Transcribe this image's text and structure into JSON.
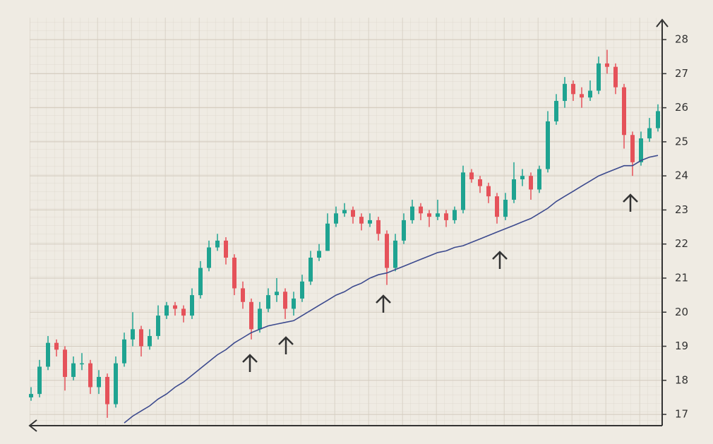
{
  "chart_data": {
    "type": "candlestick",
    "up_color": "#1fa391",
    "down_color": "#e5525a",
    "open": [
      17.5,
      17.6,
      18.4,
      19.1,
      18.9,
      18.1,
      18.5,
      18.5,
      17.8,
      18.1,
      17.3,
      18.5,
      19.2,
      19.5,
      19.0,
      19.3,
      19.9,
      20.2,
      20.1,
      19.9,
      20.5,
      21.3,
      21.9,
      22.1,
      21.6,
      20.7,
      20.3,
      19.5,
      20.1,
      20.5,
      20.6,
      20.1,
      20.4,
      20.9,
      21.6,
      21.8,
      22.6,
      22.9,
      23.0,
      22.8,
      22.6,
      22.7,
      22.3,
      21.3,
      22.1,
      22.7,
      23.1,
      22.9,
      22.8,
      22.9,
      22.7,
      23.0,
      24.1,
      23.9,
      23.7,
      23.4,
      22.8,
      23.3,
      23.9,
      24.0,
      23.6,
      24.2,
      25.6,
      26.2,
      26.7,
      26.4,
      26.3,
      26.5,
      27.3,
      27.2,
      26.6,
      25.2,
      24.4,
      25.1,
      25.4
    ],
    "high": [
      17.8,
      18.6,
      19.3,
      19.2,
      19.0,
      18.7,
      18.8,
      18.6,
      18.3,
      18.2,
      18.7,
      19.4,
      20.0,
      19.6,
      19.5,
      20.2,
      20.3,
      20.3,
      20.2,
      20.7,
      21.5,
      22.1,
      22.3,
      22.2,
      21.7,
      20.9,
      20.4,
      20.3,
      20.7,
      21.0,
      20.7,
      20.6,
      21.1,
      21.8,
      22.0,
      22.9,
      23.1,
      23.2,
      23.1,
      22.9,
      22.9,
      22.8,
      22.4,
      22.3,
      22.9,
      23.3,
      23.2,
      23.0,
      23.3,
      23.0,
      23.1,
      24.3,
      24.2,
      24.0,
      23.8,
      23.5,
      23.5,
      24.4,
      24.2,
      24.1,
      24.3,
      25.9,
      26.4,
      26.9,
      26.8,
      26.6,
      26.8,
      27.5,
      27.7,
      27.3,
      26.7,
      25.3,
      25.3,
      25.7,
      26.1
    ],
    "low": [
      17.4,
      17.5,
      18.3,
      18.7,
      17.7,
      18.0,
      18.3,
      17.6,
      17.6,
      16.9,
      17.2,
      18.4,
      19.0,
      18.7,
      18.9,
      19.2,
      19.8,
      19.9,
      19.7,
      19.8,
      20.4,
      21.2,
      21.8,
      21.4,
      20.5,
      20.1,
      19.2,
      19.4,
      20.0,
      20.3,
      19.8,
      19.9,
      20.3,
      20.8,
      21.5,
      21.8,
      22.5,
      22.8,
      22.6,
      22.4,
      22.5,
      22.1,
      20.8,
      21.2,
      22.0,
      22.6,
      22.7,
      22.5,
      22.7,
      22.5,
      22.6,
      22.9,
      23.8,
      23.5,
      23.2,
      22.6,
      22.7,
      23.2,
      23.7,
      23.3,
      23.5,
      24.1,
      25.5,
      26.0,
      26.2,
      26.0,
      26.2,
      26.4,
      27.0,
      26.4,
      24.8,
      24.0,
      24.3,
      25.0,
      25.3
    ],
    "close": [
      17.6,
      18.4,
      19.1,
      18.9,
      18.1,
      18.5,
      18.5,
      17.8,
      18.1,
      17.3,
      18.5,
      19.2,
      19.5,
      19.0,
      19.3,
      19.9,
      20.2,
      20.1,
      19.9,
      20.5,
      21.3,
      21.9,
      22.1,
      21.6,
      20.7,
      20.3,
      19.5,
      20.1,
      20.5,
      20.6,
      20.1,
      20.4,
      20.9,
      21.6,
      21.8,
      22.6,
      22.9,
      23.0,
      22.8,
      22.6,
      22.7,
      22.3,
      21.3,
      22.1,
      22.7,
      23.1,
      22.9,
      22.8,
      22.9,
      22.7,
      23.0,
      24.1,
      23.9,
      23.7,
      23.4,
      22.8,
      23.3,
      23.9,
      24.0,
      23.6,
      24.2,
      25.6,
      26.2,
      26.7,
      26.4,
      26.3,
      26.5,
      27.3,
      27.2,
      26.6,
      25.2,
      24.4,
      25.1,
      25.4,
      25.9
    ],
    "moving_average": {
      "color": "#3c4a8e",
      "values": [
        null,
        null,
        null,
        null,
        null,
        null,
        null,
        null,
        null,
        null,
        null,
        16.75,
        16.95,
        17.1,
        17.25,
        17.45,
        17.6,
        17.8,
        17.95,
        18.15,
        18.35,
        18.55,
        18.75,
        18.9,
        19.1,
        19.25,
        19.4,
        19.5,
        19.6,
        19.65,
        19.7,
        19.75,
        19.9,
        20.05,
        20.2,
        20.35,
        20.5,
        20.6,
        20.75,
        20.85,
        21.0,
        21.1,
        21.15,
        21.25,
        21.35,
        21.45,
        21.55,
        21.65,
        21.75,
        21.8,
        21.9,
        21.95,
        22.05,
        22.15,
        22.25,
        22.35,
        22.45,
        22.55,
        22.65,
        22.75,
        22.9,
        23.05,
        23.25,
        23.4,
        23.55,
        23.7,
        23.85,
        24.0,
        24.1,
        24.2,
        24.3,
        24.3,
        24.45,
        24.55,
        24.6
      ]
    },
    "ylim": [
      16.67,
      28.54
    ],
    "yticks": [
      17,
      18,
      19,
      20,
      21,
      22,
      23,
      24,
      25,
      26,
      27,
      28
    ],
    "grid": true
  }
}
